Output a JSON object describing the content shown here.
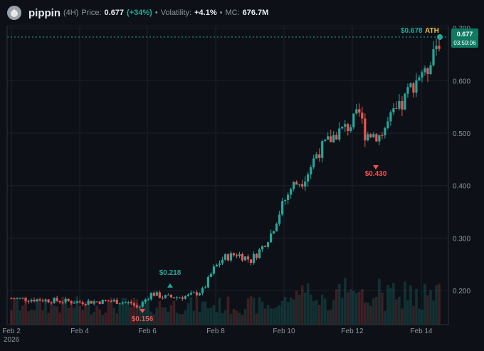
{
  "header": {
    "token_name": "pippin",
    "timeframe": "(4H)",
    "price_label": "Price:",
    "price_value": "0.677",
    "price_change": "(+34%)",
    "volatility_label": "Volatility:",
    "volatility_value": "+4.1%",
    "mc_label": "MC:",
    "mc_value": "676.7M"
  },
  "colors": {
    "background": "#0d1117",
    "up": "#26a69a",
    "down": "#ef5350",
    "ath_label": "#f0c040",
    "dotted_line": "#26a69a"
  },
  "annotations": {
    "ath_price": "$0.678",
    "ath_tag": "ATH",
    "current_price": "0.677",
    "countdown": "03:59:06",
    "high_label": "$0.218",
    "low_label": "$0.156",
    "dip_label": "$0.430"
  },
  "chart_data": {
    "type": "candlestick",
    "y_ticks": [
      "0.200",
      "0.300",
      "0.400",
      "0.500",
      "0.600",
      "0.700"
    ],
    "x_ticks": [
      "Feb 2",
      "Feb 4",
      "Feb 6",
      "Feb 8",
      "Feb 10",
      "Feb 12",
      "Feb 14"
    ],
    "year_label": "2026",
    "ylim": [
      0.135,
      0.705
    ]
  }
}
